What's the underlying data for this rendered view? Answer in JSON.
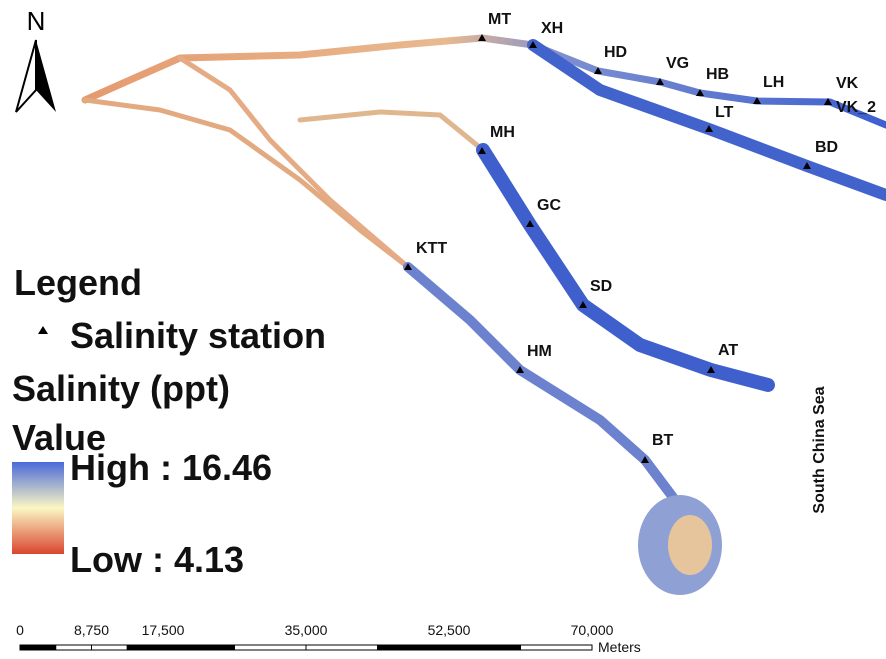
{
  "map": {
    "north_label": "N",
    "stations": [
      "MT",
      "XH",
      "HD",
      "VG",
      "HB",
      "LH",
      "VK",
      "VK_2",
      "LT",
      "BD",
      "MH",
      "GC",
      "SD",
      "AT",
      "KTT",
      "HM",
      "BT"
    ],
    "sea_label": "South China Sea",
    "legend": {
      "title": "Legend",
      "station_label": "Salinity station",
      "layer_title": "Salinity (ppt)",
      "field": "Value",
      "high": "High : 16.46",
      "low": "Low : 4.13"
    },
    "scale_bar": {
      "ticks": [
        {
          "value": 0,
          "label": "0"
        },
        {
          "value": 8750,
          "label": "8,750"
        },
        {
          "value": 17500,
          "label": "17,500"
        },
        {
          "value": 35000,
          "label": "35,000"
        },
        {
          "value": 52500,
          "label": "52,500"
        },
        {
          "value": 70000,
          "label": "70,000"
        }
      ],
      "unit": "Meters"
    }
  }
}
